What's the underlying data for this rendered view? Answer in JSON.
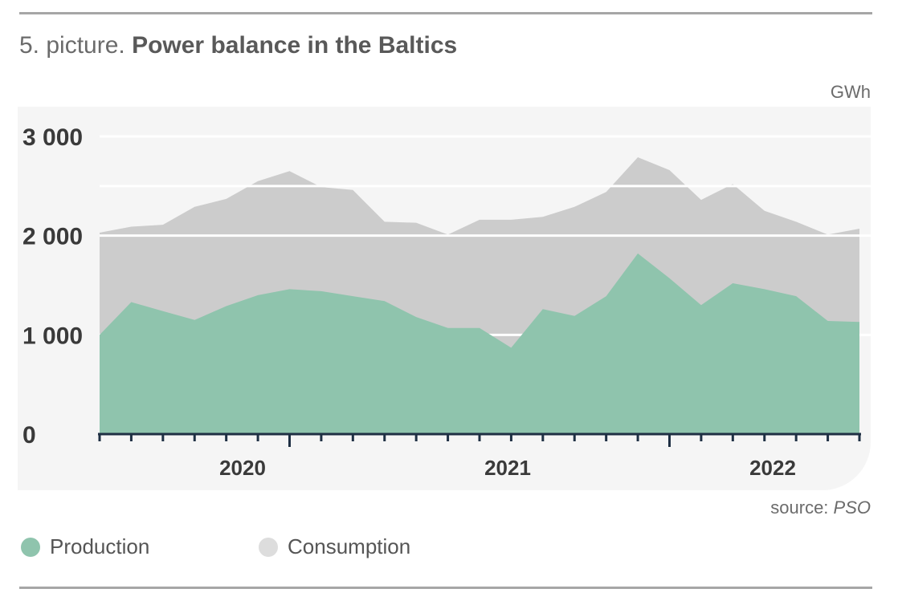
{
  "header": {
    "title_prefix": "5. picture. ",
    "title_main": "Power balance in the Baltics"
  },
  "unit_label": "GWh",
  "source": {
    "prefix": "source: ",
    "name": "PSO"
  },
  "colors": {
    "production": "#8fc4ad",
    "consumption": "#cccccc",
    "axis": "#1f3044",
    "tick_label": "#3a3a3a"
  },
  "chart_data": {
    "type": "area",
    "title": "Power balance in the Baltics",
    "ylabel": "GWh",
    "xlabel": "",
    "ylim": [
      0,
      3000
    ],
    "yticks": [
      0,
      1000,
      2000,
      3000
    ],
    "ytick_labels": [
      "0",
      "1 000",
      "2 000",
      "3 000"
    ],
    "year_labels": [
      {
        "label": "2020",
        "start_index": 1,
        "end_index": 12
      },
      {
        "label": "2021",
        "start_index": 13,
        "end_index": 24
      },
      {
        "label": "2022",
        "start_index": 25,
        "end_index": 33
      }
    ],
    "grid": true,
    "stacked": false,
    "legend_position": "bottom-left",
    "series": [
      {
        "name": "Production",
        "values": [
          1000,
          1330,
          1240,
          1150,
          1290,
          1400,
          1460,
          1440,
          1390,
          1340,
          1180,
          1070,
          1070,
          870,
          1260,
          1190,
          1390,
          1820,
          1570,
          1300,
          1520,
          1460,
          1390,
          1140,
          1130
        ]
      },
      {
        "name": "Consumption",
        "values": [
          2030,
          2090,
          2110,
          2290,
          2370,
          2550,
          2650,
          2490,
          2460,
          2140,
          2130,
          2010,
          2160,
          2160,
          2190,
          2290,
          2440,
          2790,
          2660,
          2360,
          2520,
          2250,
          2140,
          2010,
          2070
        ]
      }
    ]
  }
}
